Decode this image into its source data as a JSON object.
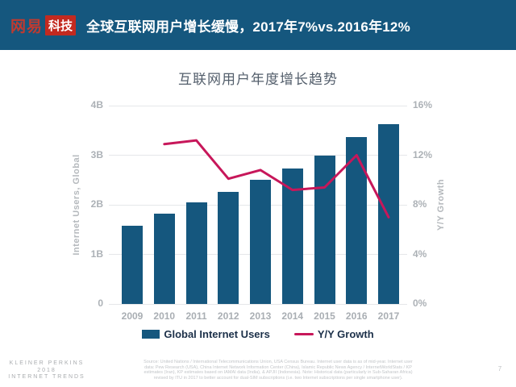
{
  "header": {
    "logo_netease": "网易",
    "logo_tech": "科技",
    "headline": "全球互联网用户增长缓慢，2017年7%vs.2016年12%"
  },
  "chart_data": {
    "type": "bar",
    "title": "互联网用户年度增长趋势",
    "categories": [
      "2009",
      "2010",
      "2011",
      "2012",
      "2013",
      "2014",
      "2015",
      "2016",
      "2017"
    ],
    "series": [
      {
        "name": "Global Internet Users",
        "type": "bar",
        "axis": "left",
        "unit": "B",
        "color": "#15577E",
        "values": [
          1.58,
          1.82,
          2.05,
          2.26,
          2.5,
          2.74,
          3.0,
          3.37,
          3.62
        ]
      },
      {
        "name": "Y/Y Growth",
        "type": "line",
        "axis": "right",
        "unit": "%",
        "color": "#C7175A",
        "values": [
          null,
          12.9,
          13.2,
          10.1,
          10.8,
          9.2,
          9.4,
          12.0,
          7.0
        ]
      }
    ],
    "left_axis": {
      "label": "Internet Users, Global",
      "min": 0,
      "max": 4,
      "ticks": [
        "4B",
        "3B",
        "2B",
        "1B",
        "0"
      ]
    },
    "right_axis": {
      "label": "Y/Y Growth",
      "min": 0,
      "max": 16,
      "ticks": [
        "16%",
        "12%",
        "8%",
        "4%",
        "0%"
      ]
    },
    "grid": true,
    "legend_position": "bottom"
  },
  "legend": {
    "bar_label": "Global Internet Users",
    "line_label": "Y/Y Growth"
  },
  "footer": {
    "brand_line1": "KLEINER PERKINS",
    "brand_line2": "2018",
    "brand_line3": "INTERNET TRENDS",
    "source_lines": [
      "Source: United Nations / International Telecommunications Union, USA Census Bureau. Internet user data is as of mid-year. Internet user",
      "data: Pew Research (USA), China Internet Network Information Center (China), Islamic Republic News Agency / InternetWorldStats / KP",
      "estimates (Iran), KP estimates based on IAMAI data (India), & APJII (Indonesia).  Note: Historical data (particularly in Sub-Saharan Africa)",
      "revised by ITU in 2017 to better account for dual-SIM subscriptions (i.e. two Internet subscriptions per single smartphone user)."
    ],
    "page_number": "7"
  },
  "colors": {
    "header_bg": "#15577E",
    "bar": "#15577E",
    "line": "#C7175A",
    "logo_red": "#C32A20"
  }
}
